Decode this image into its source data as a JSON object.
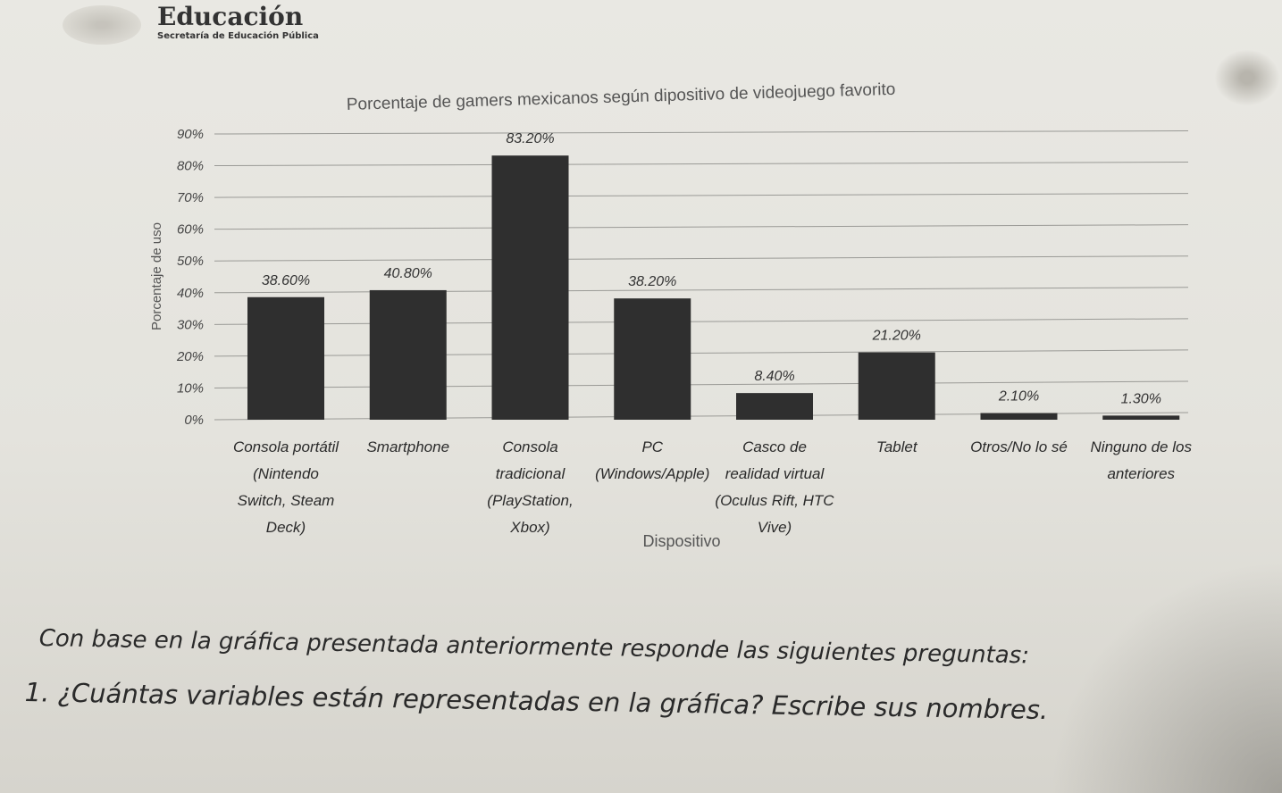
{
  "header": {
    "brand": "Educación",
    "subtitle": "Secretaría de Educación Pública",
    "logo_icon": "mexico-seal-icon"
  },
  "top_title": "de videojuego favorito",
  "chart_data": {
    "type": "bar",
    "title": "Porcentaje de gamers mexicanos según dipositivo de videojuego favorito",
    "xlabel": "Dispositivo",
    "ylabel": "Porcentaje de uso",
    "ylim": [
      0,
      90
    ],
    "yticks": [
      "0%",
      "10%",
      "20%",
      "30%",
      "40%",
      "50%",
      "60%",
      "70%",
      "80%",
      "90%"
    ],
    "grid": true,
    "bar_color": "#2f2f2f",
    "categories": [
      [
        "Consola portátil",
        "(Nintendo",
        "Switch, Steam",
        "Deck)"
      ],
      [
        "Smartphone"
      ],
      [
        "Consola",
        "tradicional",
        "(PlayStation,",
        "Xbox)"
      ],
      [
        "PC",
        "(Windows/Apple)"
      ],
      [
        "Casco de",
        "realidad virtual",
        "(Oculus Rift, HTC",
        "Vive)"
      ],
      [
        "Tablet"
      ],
      [
        "Otros/No lo sé"
      ],
      [
        "Ninguno de los",
        "anteriores"
      ]
    ],
    "values": [
      38.6,
      40.8,
      83.2,
      38.2,
      8.4,
      21.2,
      2.1,
      1.3
    ],
    "value_labels": [
      "38.60%",
      "40.80%",
      "83.20%",
      "38.20%",
      "8.40%",
      "21.20%",
      "2.10%",
      "1.30%"
    ]
  },
  "text": {
    "instruction": "Con base en la gráfica presentada anteriormente responde las siguientes preguntas:",
    "question_1": "1. ¿Cuántas variables están representadas en la gráfica? Escribe sus nombres."
  }
}
